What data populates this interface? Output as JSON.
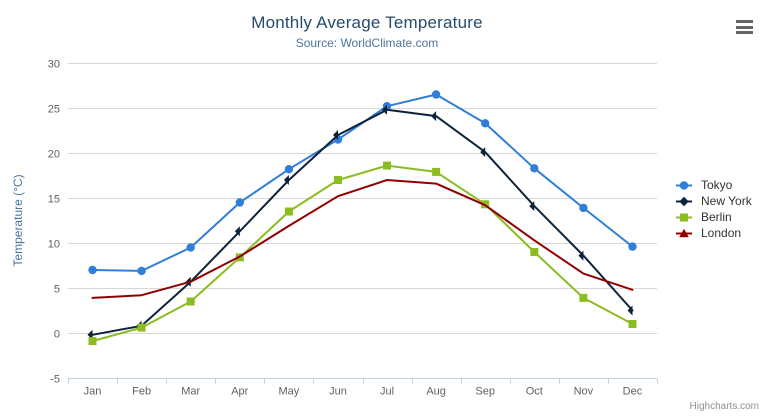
{
  "header": {
    "title": "Monthly Average Temperature",
    "subtitle": "Source: WorldClimate.com"
  },
  "icons": {
    "context_menu": "hamburger-icon"
  },
  "credits": {
    "label": "Highcharts.com"
  },
  "colors": {
    "title": "#274b6d",
    "subtitle": "#4d759e",
    "axis_label": "#606060",
    "axis_title": "#4d759e",
    "grid": "#d8d8d8",
    "axis_line": "#c0d0e0",
    "legend_text": "#333333",
    "menu_icon": "#666666"
  },
  "chart_data": {
    "type": "line",
    "title": "Monthly Average Temperature",
    "subtitle": "Source: WorldClimate.com",
    "categories": [
      "Jan",
      "Feb",
      "Mar",
      "Apr",
      "May",
      "Jun",
      "Jul",
      "Aug",
      "Sep",
      "Oct",
      "Nov",
      "Dec"
    ],
    "xlabel": "",
    "ylabel": "Temperature (°C)",
    "ylim": [
      -5,
      30
    ],
    "ytick_interval": 5,
    "grid": true,
    "legend_position": "right",
    "series": [
      {
        "name": "Tokyo",
        "color": "#2f7ed8",
        "marker": "circle",
        "values": [
          7.0,
          6.9,
          9.5,
          14.5,
          18.2,
          21.5,
          25.2,
          26.5,
          23.3,
          18.3,
          13.9,
          9.6
        ]
      },
      {
        "name": "New York",
        "color": "#0d233a",
        "marker": "diamond",
        "values": [
          -0.2,
          0.8,
          5.7,
          11.3,
          17.0,
          22.0,
          24.8,
          24.1,
          20.1,
          14.1,
          8.6,
          2.5
        ]
      },
      {
        "name": "Berlin",
        "color": "#8bbc21",
        "marker": "square",
        "values": [
          -0.9,
          0.6,
          3.5,
          8.4,
          13.5,
          17.0,
          18.6,
          17.9,
          14.3,
          9.0,
          3.9,
          1.0
        ]
      },
      {
        "name": "London",
        "color": "#910000",
        "marker": "triangle",
        "values": [
          3.9,
          4.2,
          5.7,
          8.5,
          11.9,
          15.2,
          17.0,
          16.6,
          14.2,
          10.3,
          6.6,
          4.8
        ]
      }
    ]
  }
}
